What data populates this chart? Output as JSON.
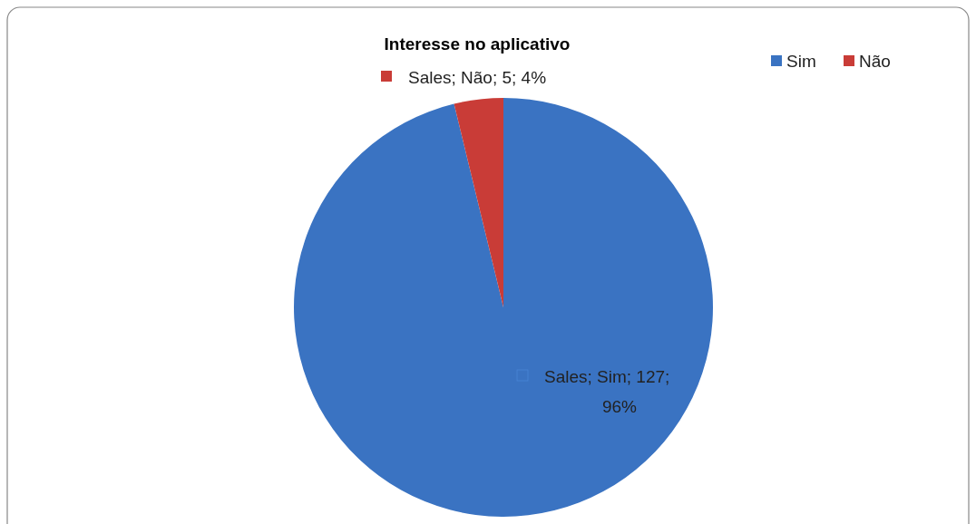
{
  "chart_data": {
    "type": "pie",
    "title": "Interesse no aplicativo",
    "categories": [
      "Sim",
      "Não"
    ],
    "values": [
      127,
      5
    ],
    "colors": [
      "#3a73c2",
      "#c93c37"
    ],
    "value_labels": [
      "Sales; Sim; 127;\n96%",
      "Sales; Não; 5; 4%"
    ],
    "legend": "top right"
  }
}
